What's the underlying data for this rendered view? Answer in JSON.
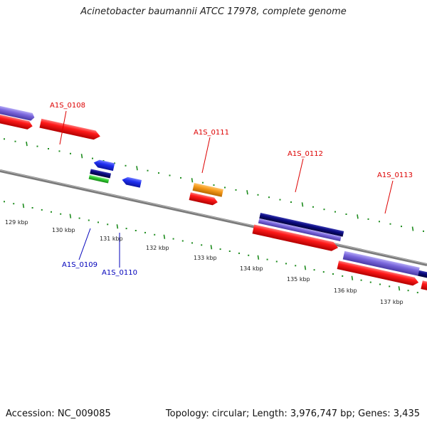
{
  "title": "Acinetobacter baumannii ATCC 17978, complete genome",
  "footer": {
    "accession": "Accession: NC_009085",
    "summary": "Topology: circular; Length: 3,976,747 bp; Genes: 3,435"
  },
  "colors": {
    "backbone": "#8c8c8c",
    "tick": "#1e8c1e",
    "label_forward": "#dd0000",
    "label_reverse": "#0000bb",
    "red": "#ee1111",
    "blue": "#1f2ff0",
    "navy": "#0a0a80",
    "lavender": "#7b68dd",
    "orange": "#f59a1a",
    "green": "#33cc33"
  },
  "scale": {
    "tick_labels": [
      "129 kbp",
      "130 kbp",
      "131 kbp",
      "132 kbp",
      "133 kbp",
      "134 kbp",
      "135 kbp",
      "136 kbp",
      "137 kbp"
    ]
  },
  "genes": [
    {
      "id": "A1S_0108",
      "label": "A1S_0108",
      "side": "top",
      "color_key": "label_forward"
    },
    {
      "id": "A1S_0111",
      "label": "A1S_0111",
      "side": "top",
      "color_key": "label_forward"
    },
    {
      "id": "A1S_0112",
      "label": "A1S_0112",
      "side": "top",
      "color_key": "label_forward"
    },
    {
      "id": "A1S_0113",
      "label": "A1S_0113",
      "side": "top",
      "color_key": "label_forward"
    },
    {
      "id": "A1S_0109",
      "label": "A1S_0109",
      "side": "bottom",
      "color_key": "label_reverse"
    },
    {
      "id": "A1S_0110",
      "label": "A1S_0110",
      "side": "bottom",
      "color_key": "label_reverse"
    }
  ]
}
